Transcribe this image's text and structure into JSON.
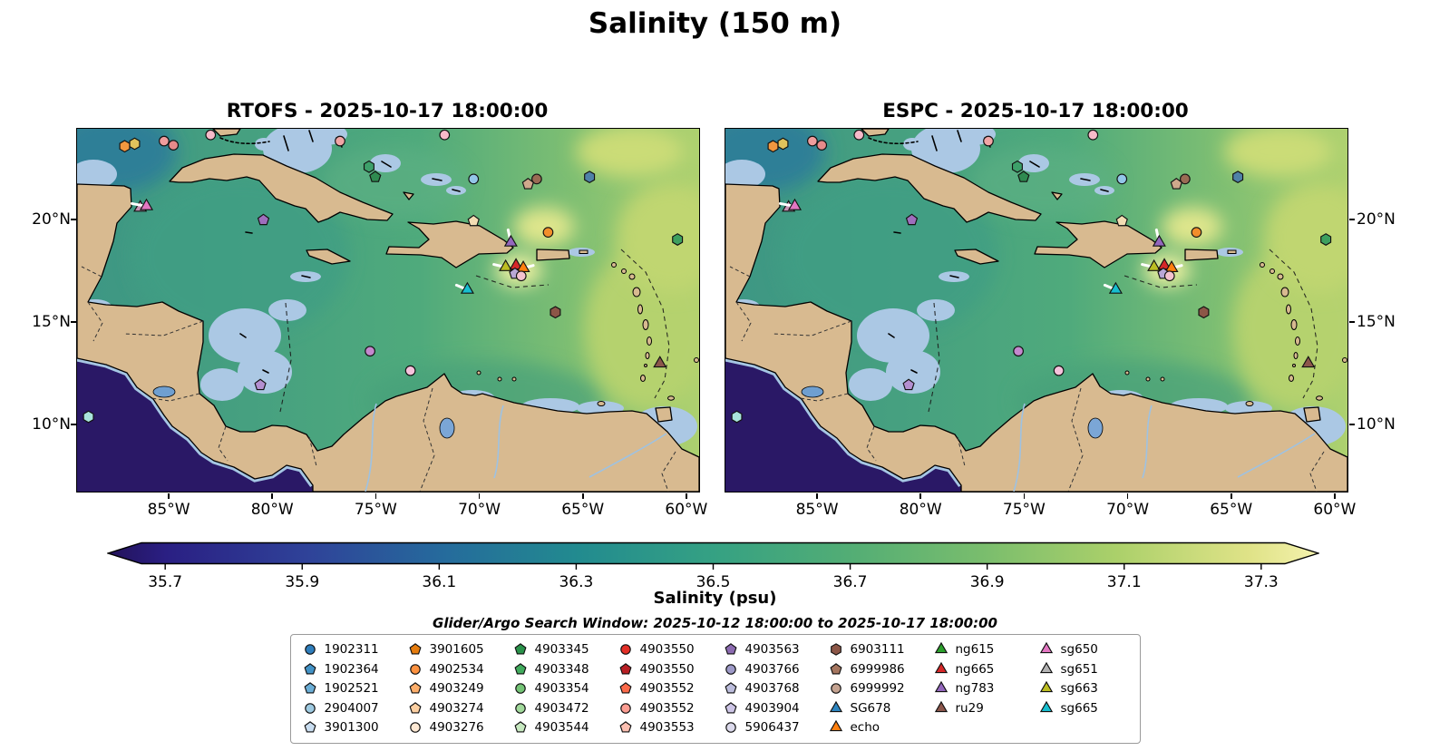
{
  "title": "Salinity (150 m)",
  "captions": {
    "search_window": "Glider/Argo Search Window: 2025-10-12 18:00:00 to 2025-10-17 18:00:00"
  },
  "axes": {
    "lon_ticks": [
      {
        "label": "85°W",
        "lon": 85
      },
      {
        "label": "80°W",
        "lon": 80
      },
      {
        "label": "75°W",
        "lon": 75
      },
      {
        "label": "70°W",
        "lon": 70
      },
      {
        "label": "65°W",
        "lon": 65
      },
      {
        "label": "60°W",
        "lon": 60
      }
    ],
    "lat_ticks": [
      {
        "label": "20°N",
        "lat": 20
      },
      {
        "label": "15°N",
        "lat": 15
      },
      {
        "label": "10°N",
        "lat": 10
      }
    ]
  },
  "chart_data": {
    "type": "heatmap",
    "title": "Salinity (150 m)",
    "depth_m": 150,
    "panels": [
      {
        "model": "RTOFS",
        "valid_time": "2025-10-17 18:00:00",
        "title": "RTOFS - 2025-10-17 18:00:00"
      },
      {
        "model": "ESPC",
        "valid_time": "2025-10-17 18:00:00",
        "title": "ESPC - 2025-10-17 18:00:00"
      }
    ],
    "x_ticks": [
      "85°W",
      "80°W",
      "75°W",
      "70°W",
      "65°W",
      "60°W"
    ],
    "y_ticks": [
      "20°N",
      "15°N",
      "10°N"
    ],
    "lon_range_deg_w": [
      89.4,
      59.4
    ],
    "lat_range_deg_n": [
      6.7,
      24.4
    ],
    "colorbar": {
      "label": "Salinity (psu)",
      "ticks": [
        35.7,
        35.9,
        36.1,
        36.3,
        36.5,
        36.7,
        36.9,
        37.1,
        37.3
      ],
      "extend": "both",
      "gradient": [
        "#23125a",
        "#2a1f83",
        "#2f4399",
        "#256b9c",
        "#228b8f",
        "#35a183",
        "#52ad75",
        "#79bd6d",
        "#abd06a",
        "#e0e388",
        "#f4f2ae"
      ]
    },
    "search_window": {
      "start": "2025-10-12 18:00:00",
      "end": "2025-10-17 18:00:00"
    },
    "markers": [
      {
        "shape": "hexagon",
        "color": "#f2973f",
        "lon_w": 87.1,
        "lat_n": 23.55
      },
      {
        "shape": "hexagon",
        "color": "#e0c35c",
        "lon_w": 86.62,
        "lat_n": 23.67
      },
      {
        "shape": "circle",
        "color": "#ef9d9d",
        "lon_w": 85.2,
        "lat_n": 23.8
      },
      {
        "shape": "circle",
        "color": "#e68a8a",
        "lon_w": 84.75,
        "lat_n": 23.6
      },
      {
        "shape": "circle",
        "color": "#f7bac9",
        "lon_w": 82.95,
        "lat_n": 24.1
      },
      {
        "shape": "circle",
        "color": "#f1a5a5",
        "lon_w": 76.7,
        "lat_n": 23.8
      },
      {
        "shape": "circle",
        "color": "#f7bac9",
        "lon_w": 71.65,
        "lat_n": 24.1
      },
      {
        "shape": "hexagon",
        "color": "#3da06a",
        "lon_w": 75.3,
        "lat_n": 22.55
      },
      {
        "shape": "pentagon",
        "color": "#2f8a50",
        "lon_w": 75.0,
        "lat_n": 22.05
      },
      {
        "shape": "circle",
        "color": "#93c6e8",
        "lon_w": 70.25,
        "lat_n": 21.95
      },
      {
        "shape": "circle",
        "color": "#9a6b54",
        "lon_w": 67.2,
        "lat_n": 21.95
      },
      {
        "shape": "pentagon",
        "color": "#cfa98c",
        "lon_w": 67.62,
        "lat_n": 21.7
      },
      {
        "shape": "hexagon",
        "color": "#4f81a8",
        "lon_w": 64.65,
        "lat_n": 22.05
      },
      {
        "shape": "triangle",
        "color": "#c792b4",
        "lon_w": 86.35,
        "lat_n": 20.55
      },
      {
        "shape": "triangle",
        "color": "#e377c2",
        "lon_w": 86.05,
        "lat_n": 20.62,
        "arrow": [
          -16,
          -3
        ]
      },
      {
        "shape": "pentagon",
        "color": "#9e6ebd",
        "lon_w": 80.4,
        "lat_n": 19.95
      },
      {
        "shape": "pentagon",
        "color": "#f3ddb3",
        "lon_w": 70.25,
        "lat_n": 19.9
      },
      {
        "shape": "circle",
        "color": "#f28e2b",
        "lon_w": 66.65,
        "lat_n": 19.35
      },
      {
        "shape": "hexagon",
        "color": "#3da05f",
        "lon_w": 60.4,
        "lat_n": 19.0
      },
      {
        "shape": "triangle",
        "color": "#9467bd",
        "lon_w": 68.45,
        "lat_n": 18.85,
        "arrow": [
          -3,
          -14
        ]
      },
      {
        "shape": "triangle",
        "color": "#bcbd22",
        "lon_w": 68.7,
        "lat_n": 17.65,
        "arrow": [
          -13,
          -3
        ]
      },
      {
        "shape": "triangle",
        "color": "#d62728",
        "lon_w": 68.2,
        "lat_n": 17.72
      },
      {
        "shape": "triangle",
        "color": "#ff7f0e",
        "lon_w": 67.85,
        "lat_n": 17.6,
        "arrow": [
          11,
          -3
        ]
      },
      {
        "shape": "pentagon",
        "color": "#b9a7d6",
        "lon_w": 68.25,
        "lat_n": 17.33
      },
      {
        "shape": "circle",
        "color": "#f4c2cf",
        "lon_w": 67.95,
        "lat_n": 17.22
      },
      {
        "shape": "triangle",
        "color": "#17becf",
        "lon_w": 70.55,
        "lat_n": 16.55,
        "arrow": [
          -12,
          -5
        ]
      },
      {
        "shape": "hexagon",
        "color": "#8c5647",
        "lon_w": 66.3,
        "lat_n": 15.45
      },
      {
        "shape": "circle",
        "color": "#c488ce",
        "lon_w": 75.25,
        "lat_n": 13.55
      },
      {
        "shape": "circle",
        "color": "#f6c2dc",
        "lon_w": 73.3,
        "lat_n": 12.6
      },
      {
        "shape": "pentagon",
        "color": "#b48fd0",
        "lon_w": 80.55,
        "lat_n": 11.9
      },
      {
        "shape": "triangle",
        "color": "#8c564b",
        "lon_w": 61.25,
        "lat_n": 12.95
      },
      {
        "shape": "hexagon",
        "color": "#a9e4dc",
        "lon_w": 88.85,
        "lat_n": 10.35
      }
    ]
  },
  "legend": {
    "columns": [
      {
        "entries": [
          {
            "label": "1902311",
            "shape": "circle",
            "color": "#2f7ebc"
          },
          {
            "label": "1902364",
            "shape": "pentagon",
            "color": "#4292c6"
          },
          {
            "label": "1902521",
            "shape": "pentagon",
            "color": "#6baed6"
          },
          {
            "label": "2904007",
            "shape": "circle",
            "color": "#9ecae1"
          },
          {
            "label": "3901300",
            "shape": "pentagon",
            "color": "#c9ddf0"
          }
        ]
      },
      {
        "entries": [
          {
            "label": "3901605",
            "shape": "pentagon",
            "color": "#e67c0e"
          },
          {
            "label": "4902534",
            "shape": "circle",
            "color": "#fd9240"
          },
          {
            "label": "4903249",
            "shape": "pentagon",
            "color": "#fdae6b"
          },
          {
            "label": "4903274",
            "shape": "pentagon",
            "color": "#fdd0a2"
          },
          {
            "label": "4903276",
            "shape": "circle",
            "color": "#fee9d4"
          }
        ]
      },
      {
        "entries": [
          {
            "label": "4903345",
            "shape": "pentagon",
            "color": "#2a924a"
          },
          {
            "label": "4903348",
            "shape": "pentagon",
            "color": "#41ab5d"
          },
          {
            "label": "4903354",
            "shape": "circle",
            "color": "#74c476"
          },
          {
            "label": "4903472",
            "shape": "circle",
            "color": "#a1d99b"
          },
          {
            "label": "4903544",
            "shape": "pentagon",
            "color": "#c7e9c0"
          }
        ]
      },
      {
        "entries": [
          {
            "label": "4903550",
            "shape": "circle",
            "color": "#e32f27"
          },
          {
            "label": "4903550",
            "shape": "pentagon",
            "color": "#b81f24"
          },
          {
            "label": "4903552",
            "shape": "pentagon",
            "color": "#fb6a4a"
          },
          {
            "label": "4903552",
            "shape": "circle",
            "color": "#fc9d92"
          },
          {
            "label": "4903553",
            "shape": "pentagon",
            "color": "#fcbfb1"
          }
        ]
      },
      {
        "entries": [
          {
            "label": "4903563",
            "shape": "pentagon",
            "color": "#8c6bb1"
          },
          {
            "label": "4903766",
            "shape": "circle",
            "color": "#9e9ac8"
          },
          {
            "label": "4903768",
            "shape": "pentagon",
            "color": "#bcbddc"
          },
          {
            "label": "4903904",
            "shape": "pentagon",
            "color": "#cdc5e6"
          },
          {
            "label": "5906437",
            "shape": "circle",
            "color": "#dcdaec"
          }
        ]
      },
      {
        "entries": [
          {
            "label": "6903111",
            "shape": "hexagon",
            "color": "#8c5647"
          },
          {
            "label": "6999986",
            "shape": "pentagon",
            "color": "#a5765f"
          },
          {
            "label": "6999992",
            "shape": "circle",
            "color": "#c5a391"
          },
          {
            "label": "SG678",
            "shape": "triangle",
            "color": "#2e86c1"
          },
          {
            "label": "echo",
            "shape": "triangle",
            "color": "#ff7f0e"
          }
        ]
      },
      {
        "entries": [
          {
            "label": "ng615",
            "shape": "triangle",
            "color": "#2ca02c"
          },
          {
            "label": "ng665",
            "shape": "triangle",
            "color": "#d62728"
          },
          {
            "label": "ng783",
            "shape": "triangle",
            "color": "#9467bd"
          },
          {
            "label": "ru29",
            "shape": "triangle",
            "color": "#8c564b"
          }
        ]
      },
      {
        "entries": [
          {
            "label": "sg650",
            "shape": "triangle",
            "color": "#e377c2"
          },
          {
            "label": "sg651",
            "shape": "triangle",
            "color": "#b3b3b3"
          },
          {
            "label": "sg663",
            "shape": "triangle",
            "color": "#bcbd22"
          },
          {
            "label": "sg665",
            "shape": "triangle",
            "color": "#17becf"
          }
        ]
      }
    ]
  }
}
